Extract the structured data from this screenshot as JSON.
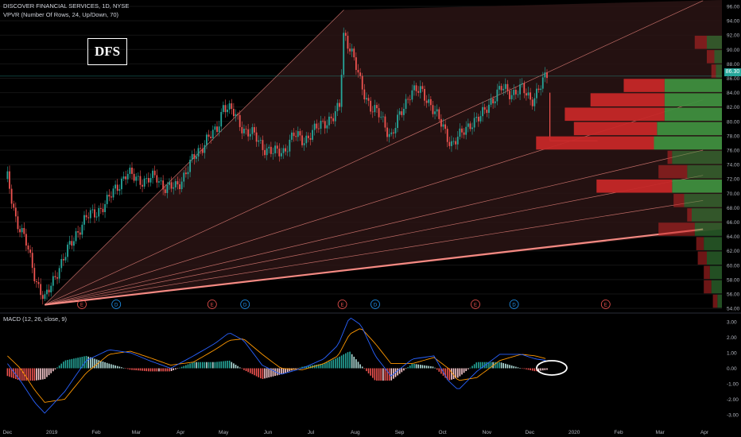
{
  "header": {
    "title": "DISCOVER FINANCIAL SERVICES, 1D, NYSE",
    "indicator": "VPVR (Number Of Rows, 24, Up/Down, 70)",
    "macd_label": "MACD (12, 26, close, 9)"
  },
  "logo_text": "DFS",
  "last_price": "86.30",
  "colors": {
    "up": "#26a69a",
    "down": "#ef5350",
    "macd": "#2962ff",
    "signal": "#ff9800",
    "fan": "#f58a83",
    "vol_up": "#3f8f3f",
    "vol_down": "#c62828"
  },
  "chart_data": [
    {
      "type": "candlestick",
      "title": "DISCOVER FINANCIAL SERVICES, 1D, NYSE",
      "ylim": [
        53,
        97
      ],
      "yticks": [
        "96.00",
        "94.00",
        "92.00",
        "90.00",
        "88.00",
        "86.00",
        "84.00",
        "82.00",
        "80.00",
        "78.00",
        "76.00",
        "74.00",
        "72.00",
        "70.00",
        "68.00",
        "66.00",
        "64.00",
        "62.00",
        "60.00",
        "58.00",
        "56.00",
        "54.00"
      ],
      "xticks": [
        "Dec",
        "2019",
        "Feb",
        "Mar",
        "Apr",
        "May",
        "Jun",
        "Jul",
        "Aug",
        "Sep",
        "Oct",
        "Nov",
        "Dec",
        "2020",
        "Feb",
        "Mar",
        "Apr"
      ],
      "close_path": [
        [
          "2018-12-01",
          72.0
        ],
        [
          "2018-12-07",
          66.5
        ],
        [
          "2018-12-14",
          63.0
        ],
        [
          "2018-12-21",
          58.0
        ],
        [
          "2018-12-27",
          55.0
        ],
        [
          "2019-01-04",
          59.0
        ],
        [
          "2019-01-11",
          61.5
        ],
        [
          "2019-01-18",
          64.5
        ],
        [
          "2019-01-25",
          66.5
        ],
        [
          "2019-02-01",
          67.5
        ],
        [
          "2019-02-08",
          68.5
        ],
        [
          "2019-02-15",
          71.0
        ],
        [
          "2019-02-22",
          72.5
        ],
        [
          "2019-03-01",
          72.3
        ],
        [
          "2019-03-08",
          71.5
        ],
        [
          "2019-03-15",
          72.5
        ],
        [
          "2019-03-22",
          70.5
        ],
        [
          "2019-03-29",
          71.0
        ],
        [
          "2019-04-05",
          73.0
        ],
        [
          "2019-04-12",
          75.5
        ],
        [
          "2019-04-19",
          77.5
        ],
        [
          "2019-04-26",
          78.5
        ],
        [
          "2019-05-01",
          82.5
        ],
        [
          "2019-05-08",
          81.0
        ],
        [
          "2019-05-15",
          79.0
        ],
        [
          "2019-05-22",
          78.0
        ],
        [
          "2019-05-29",
          76.5
        ],
        [
          "2019-06-05",
          75.5
        ],
        [
          "2019-06-12",
          76.0
        ],
        [
          "2019-06-19",
          78.0
        ],
        [
          "2019-06-26",
          77.5
        ],
        [
          "2019-07-03",
          78.5
        ],
        [
          "2019-07-10",
          80.0
        ],
        [
          "2019-07-17",
          80.5
        ],
        [
          "2019-07-21",
          82.0
        ],
        [
          "2019-07-24",
          92.5
        ],
        [
          "2019-07-29",
          90.0
        ],
        [
          "2019-08-05",
          85.0
        ],
        [
          "2019-08-12",
          82.0
        ],
        [
          "2019-08-19",
          80.5
        ],
        [
          "2019-08-26",
          78.0
        ],
        [
          "2019-09-02",
          81.0
        ],
        [
          "2019-09-09",
          84.5
        ],
        [
          "2019-09-16",
          84.0
        ],
        [
          "2019-09-23",
          82.5
        ],
        [
          "2019-09-30",
          79.5
        ],
        [
          "2019-10-07",
          77.0
        ],
        [
          "2019-10-14",
          78.0
        ],
        [
          "2019-10-21",
          80.0
        ],
        [
          "2019-10-28",
          80.5
        ],
        [
          "2019-11-04",
          83.0
        ],
        [
          "2019-11-11",
          84.5
        ],
        [
          "2019-11-18",
          84.0
        ],
        [
          "2019-11-25",
          84.5
        ],
        [
          "2019-12-02",
          83.0
        ],
        [
          "2019-12-09",
          85.0
        ],
        [
          "2019-12-13",
          86.3
        ]
      ],
      "last_price": 86.3,
      "gann_fan": {
        "origin": [
          "2018-12-27",
          54.5
        ],
        "ray_targets": [
          [
            "2019-07-24",
            95.5
          ],
          [
            "2020-03-31",
            96.8
          ],
          [
            "2020-03-31",
            83.0
          ],
          [
            "2020-03-31",
            76.0
          ],
          [
            "2020-03-31",
            72.5
          ],
          [
            "2020-03-31",
            69.0
          ],
          [
            "2020-03-31",
            65.0
          ]
        ]
      },
      "price_projection": {
        "date": "2019-12-15",
        "from": 84.0,
        "to": 77.3
      },
      "events": [
        {
          "date": "2019-01-22",
          "label": "E"
        },
        {
          "date": "2019-02-15",
          "label": "D"
        },
        {
          "date": "2019-04-23",
          "label": "E"
        },
        {
          "date": "2019-05-16",
          "label": "D"
        },
        {
          "date": "2019-07-23",
          "label": "E"
        },
        {
          "date": "2019-08-15",
          "label": "D"
        },
        {
          "date": "2019-10-24",
          "label": "E"
        },
        {
          "date": "2019-11-20",
          "label": "D"
        },
        {
          "date": "2020-01-23",
          "label": "E"
        }
      ]
    },
    {
      "type": "bar",
      "title": "VPVR (Number Of Rows, 24, Up/Down, 70)",
      "rows": [
        {
          "price": 91.0,
          "up": 0.1,
          "down": 0.08
        },
        {
          "price": 89.0,
          "up": 0.05,
          "down": 0.05
        },
        {
          "price": 87.0,
          "up": 0.04,
          "down": 0.03
        },
        {
          "price": 85.0,
          "up": 0.38,
          "down": 0.27
        },
        {
          "price": 83.0,
          "up": 0.38,
          "down": 0.49
        },
        {
          "price": 81.0,
          "up": 0.38,
          "down": 0.66
        },
        {
          "price": 79.0,
          "up": 0.43,
          "down": 0.55
        },
        {
          "price": 77.0,
          "up": 0.45,
          "down": 0.78
        },
        {
          "price": 75.0,
          "up": 0.33,
          "down": 0.03
        },
        {
          "price": 73.0,
          "up": 0.23,
          "down": 0.19
        },
        {
          "price": 71.0,
          "up": 0.33,
          "down": 0.5
        },
        {
          "price": 69.0,
          "up": 0.25,
          "down": 0.07
        },
        {
          "price": 67.0,
          "up": 0.2,
          "down": 0.03
        },
        {
          "price": 65.0,
          "up": 0.18,
          "down": 0.24
        },
        {
          "price": 63.0,
          "up": 0.12,
          "down": 0.05
        },
        {
          "price": 61.0,
          "up": 0.1,
          "down": 0.06
        },
        {
          "price": 59.0,
          "up": 0.08,
          "down": 0.04
        },
        {
          "price": 57.0,
          "up": 0.07,
          "down": 0.05
        },
        {
          "price": 55.0,
          "up": 0.03,
          "down": 0.03
        }
      ]
    },
    {
      "type": "line",
      "title": "MACD (12, 26, close, 9)",
      "ylim": [
        -3.5,
        3.5
      ],
      "yticks": [
        "3.00",
        "2.00",
        "1.00",
        "0.00",
        "-1.00",
        "-2.00",
        "-3.00"
      ],
      "x": [
        "2018-12-01",
        "2018-12-10",
        "2018-12-20",
        "2018-12-27",
        "2019-01-10",
        "2019-01-25",
        "2019-02-10",
        "2019-02-25",
        "2019-03-10",
        "2019-03-25",
        "2019-04-10",
        "2019-04-25",
        "2019-05-05",
        "2019-05-15",
        "2019-05-28",
        "2019-06-10",
        "2019-06-25",
        "2019-07-10",
        "2019-07-20",
        "2019-07-28",
        "2019-08-05",
        "2019-08-15",
        "2019-08-26",
        "2019-09-10",
        "2019-09-25",
        "2019-10-05",
        "2019-10-12",
        "2019-10-25",
        "2019-11-10",
        "2019-11-25",
        "2019-12-05",
        "2019-12-13"
      ],
      "series": [
        {
          "name": "MACD",
          "values": [
            0.3,
            -0.8,
            -2.2,
            -2.9,
            -1.5,
            0.5,
            1.2,
            1.0,
            0.5,
            0.0,
            0.8,
            1.6,
            2.3,
            1.8,
            0.2,
            -0.4,
            0.0,
            0.6,
            1.5,
            3.3,
            2.8,
            0.8,
            -0.5,
            0.6,
            0.8,
            -0.8,
            -1.4,
            -0.2,
            0.9,
            0.9,
            0.6,
            0.5
          ]
        },
        {
          "name": "Signal",
          "values": [
            0.8,
            0.0,
            -1.4,
            -2.2,
            -2.0,
            -0.3,
            0.9,
            1.1,
            0.7,
            0.2,
            0.4,
            1.2,
            1.8,
            1.9,
            0.9,
            0.0,
            -0.1,
            0.3,
            0.8,
            2.2,
            2.6,
            1.6,
            0.3,
            0.3,
            0.7,
            0.0,
            -0.8,
            -0.6,
            0.5,
            0.9,
            0.8,
            0.6
          ]
        }
      ],
      "histogram_note": "MACD minus Signal",
      "xticks": [
        "Dec",
        "2019",
        "Feb",
        "Mar",
        "Apr",
        "May",
        "Jun",
        "Jul",
        "Aug",
        "Sep",
        "Oct",
        "Nov",
        "Dec",
        "2020",
        "Feb",
        "Mar",
        "Apr"
      ]
    }
  ]
}
